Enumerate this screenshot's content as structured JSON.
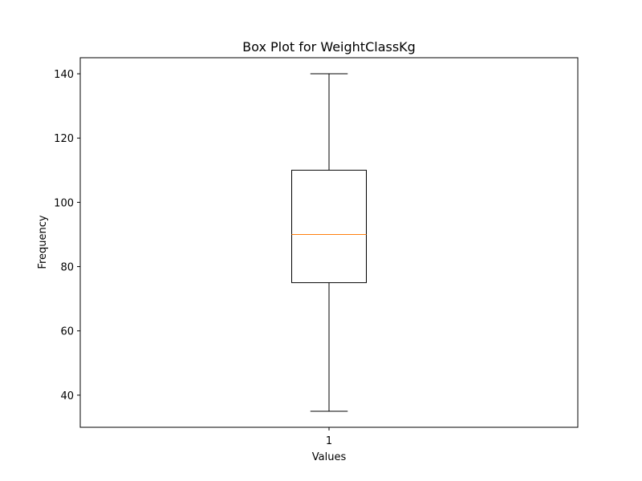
{
  "chart_data": {
    "type": "box",
    "title": "Box Plot for WeightClassKg",
    "xlabel": "Values",
    "ylabel": "Frequency",
    "categories": [
      "1"
    ],
    "boxes": [
      {
        "category": "1",
        "whisker_low": 35,
        "q1": 75,
        "median": 90,
        "q3": 110,
        "whisker_high": 140
      }
    ],
    "ylim": [
      30,
      145
    ],
    "yticks": [
      40,
      60,
      80,
      100,
      120,
      140
    ],
    "grid": false,
    "colors": {
      "box": "#000000",
      "median": "#ff7f0e",
      "whisker": "#000000"
    }
  }
}
